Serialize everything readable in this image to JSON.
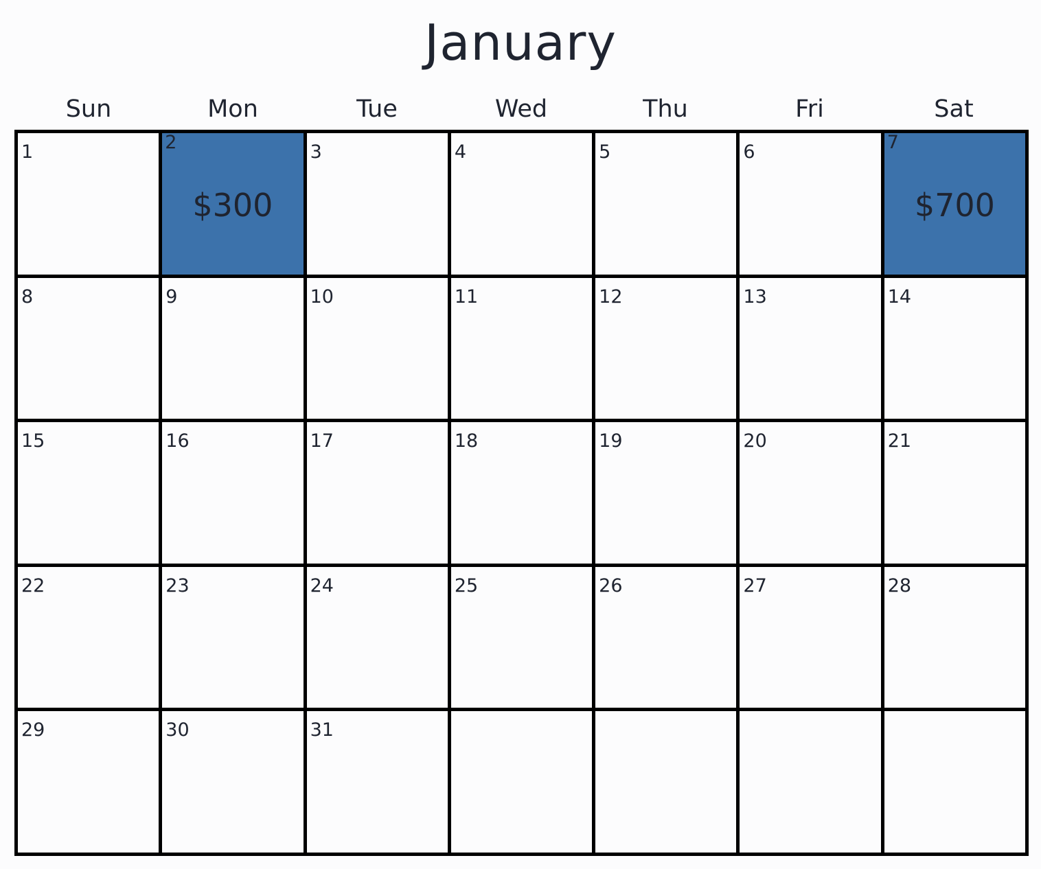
{
  "calendar": {
    "month": "January",
    "weekdays": [
      "Sun",
      "Mon",
      "Tue",
      "Wed",
      "Thu",
      "Fri",
      "Sat"
    ],
    "highlight_color": "#3c72ab",
    "cells": [
      {
        "day": "1",
        "amount": ""
      },
      {
        "day": "2",
        "amount": "$300",
        "highlight": true
      },
      {
        "day": "3",
        "amount": ""
      },
      {
        "day": "4",
        "amount": ""
      },
      {
        "day": "5",
        "amount": ""
      },
      {
        "day": "6",
        "amount": ""
      },
      {
        "day": "7",
        "amount": "$700",
        "highlight": true
      },
      {
        "day": "8",
        "amount": ""
      },
      {
        "day": "9",
        "amount": ""
      },
      {
        "day": "10",
        "amount": ""
      },
      {
        "day": "11",
        "amount": ""
      },
      {
        "day": "12",
        "amount": ""
      },
      {
        "day": "13",
        "amount": ""
      },
      {
        "day": "14",
        "amount": ""
      },
      {
        "day": "15",
        "amount": ""
      },
      {
        "day": "16",
        "amount": ""
      },
      {
        "day": "17",
        "amount": ""
      },
      {
        "day": "18",
        "amount": ""
      },
      {
        "day": "19",
        "amount": ""
      },
      {
        "day": "20",
        "amount": ""
      },
      {
        "day": "21",
        "amount": ""
      },
      {
        "day": "22",
        "amount": ""
      },
      {
        "day": "23",
        "amount": ""
      },
      {
        "day": "24",
        "amount": ""
      },
      {
        "day": "25",
        "amount": ""
      },
      {
        "day": "26",
        "amount": ""
      },
      {
        "day": "27",
        "amount": ""
      },
      {
        "day": "28",
        "amount": ""
      },
      {
        "day": "29",
        "amount": ""
      },
      {
        "day": "30",
        "amount": ""
      },
      {
        "day": "31",
        "amount": ""
      },
      {
        "day": "",
        "amount": ""
      },
      {
        "day": "",
        "amount": ""
      },
      {
        "day": "",
        "amount": ""
      },
      {
        "day": "",
        "amount": ""
      }
    ]
  }
}
